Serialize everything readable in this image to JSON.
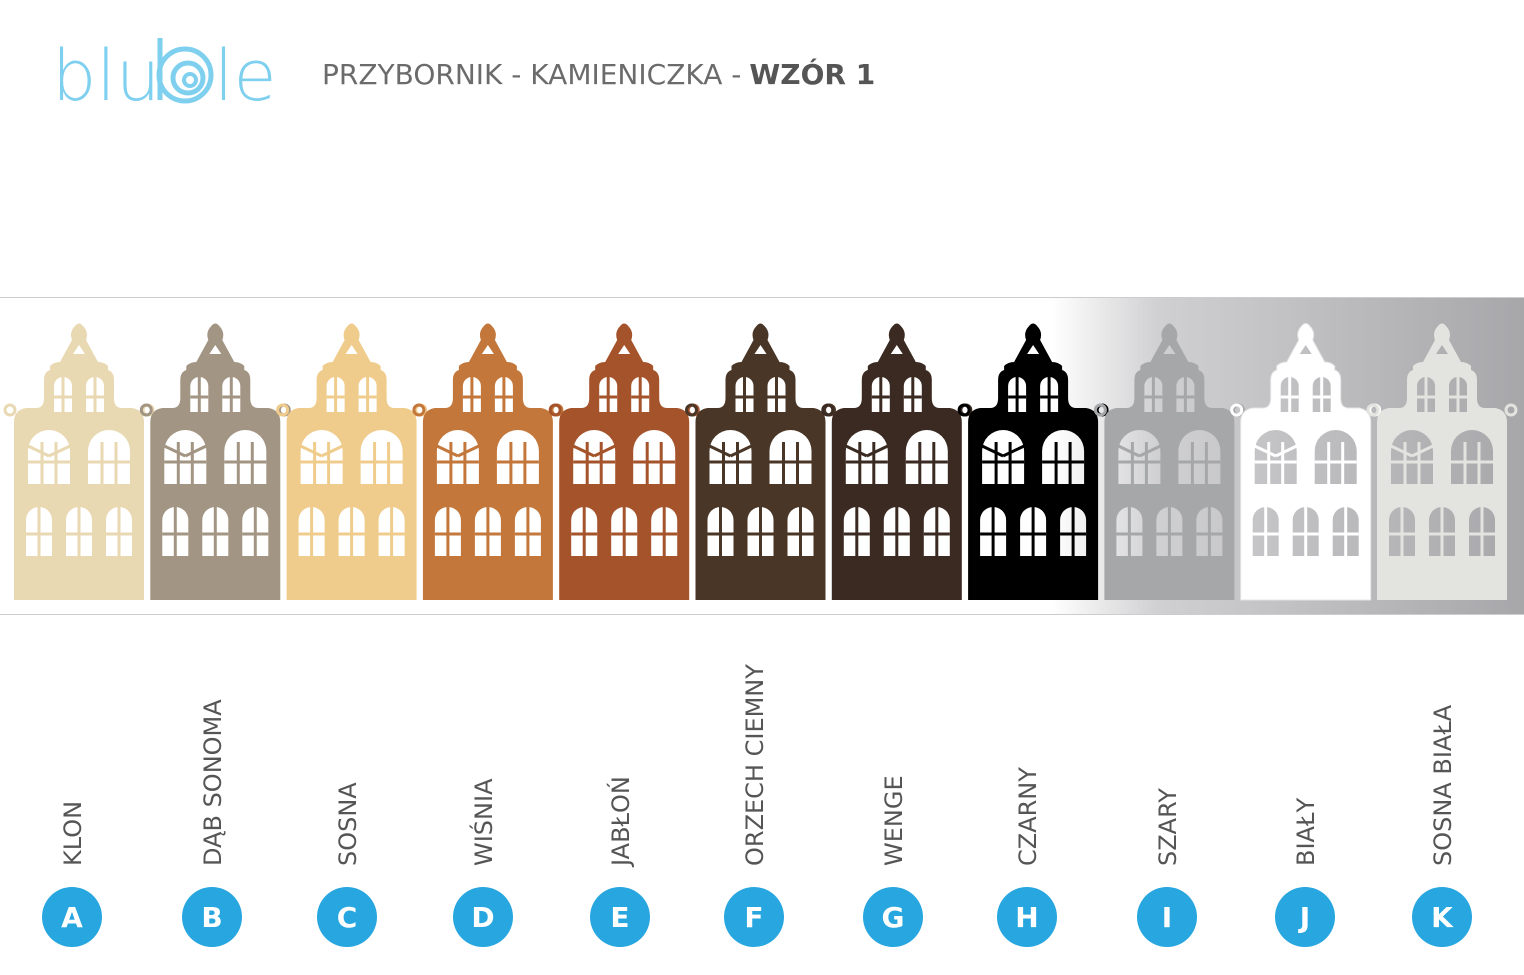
{
  "logo": {
    "left": "blu",
    "right": "le"
  },
  "header": {
    "title": "PRZYBORNIK - KAMIENICZKA -",
    "emphasis": "WZÓR 1"
  },
  "variants": [
    {
      "label": "KLON",
      "letter": "A",
      "color": "#e9d9b2"
    },
    {
      "label": "DĄB SONOMA",
      "letter": "B",
      "color": "#a39583"
    },
    {
      "label": "SOSNA",
      "letter": "C",
      "color": "#f0cc8c"
    },
    {
      "label": "WIŚNIA",
      "letter": "D",
      "color": "#c4773a"
    },
    {
      "label": "JABŁOŃ",
      "letter": "E",
      "color": "#a5532b"
    },
    {
      "label": "ORZECH CIEMNY",
      "letter": "F",
      "color": "#4a3626"
    },
    {
      "label": "WENGE",
      "letter": "G",
      "color": "#3a2a22"
    },
    {
      "label": "CZARNY",
      "letter": "H",
      "color": "#000000"
    },
    {
      "label": "SZARY",
      "letter": "I",
      "color": "#a5a7a9"
    },
    {
      "label": "BIAŁY",
      "letter": "J",
      "color": "#ffffff"
    },
    {
      "label": "SOSNA BIAŁA",
      "letter": "K",
      "color": "#e3e3df"
    }
  ]
}
